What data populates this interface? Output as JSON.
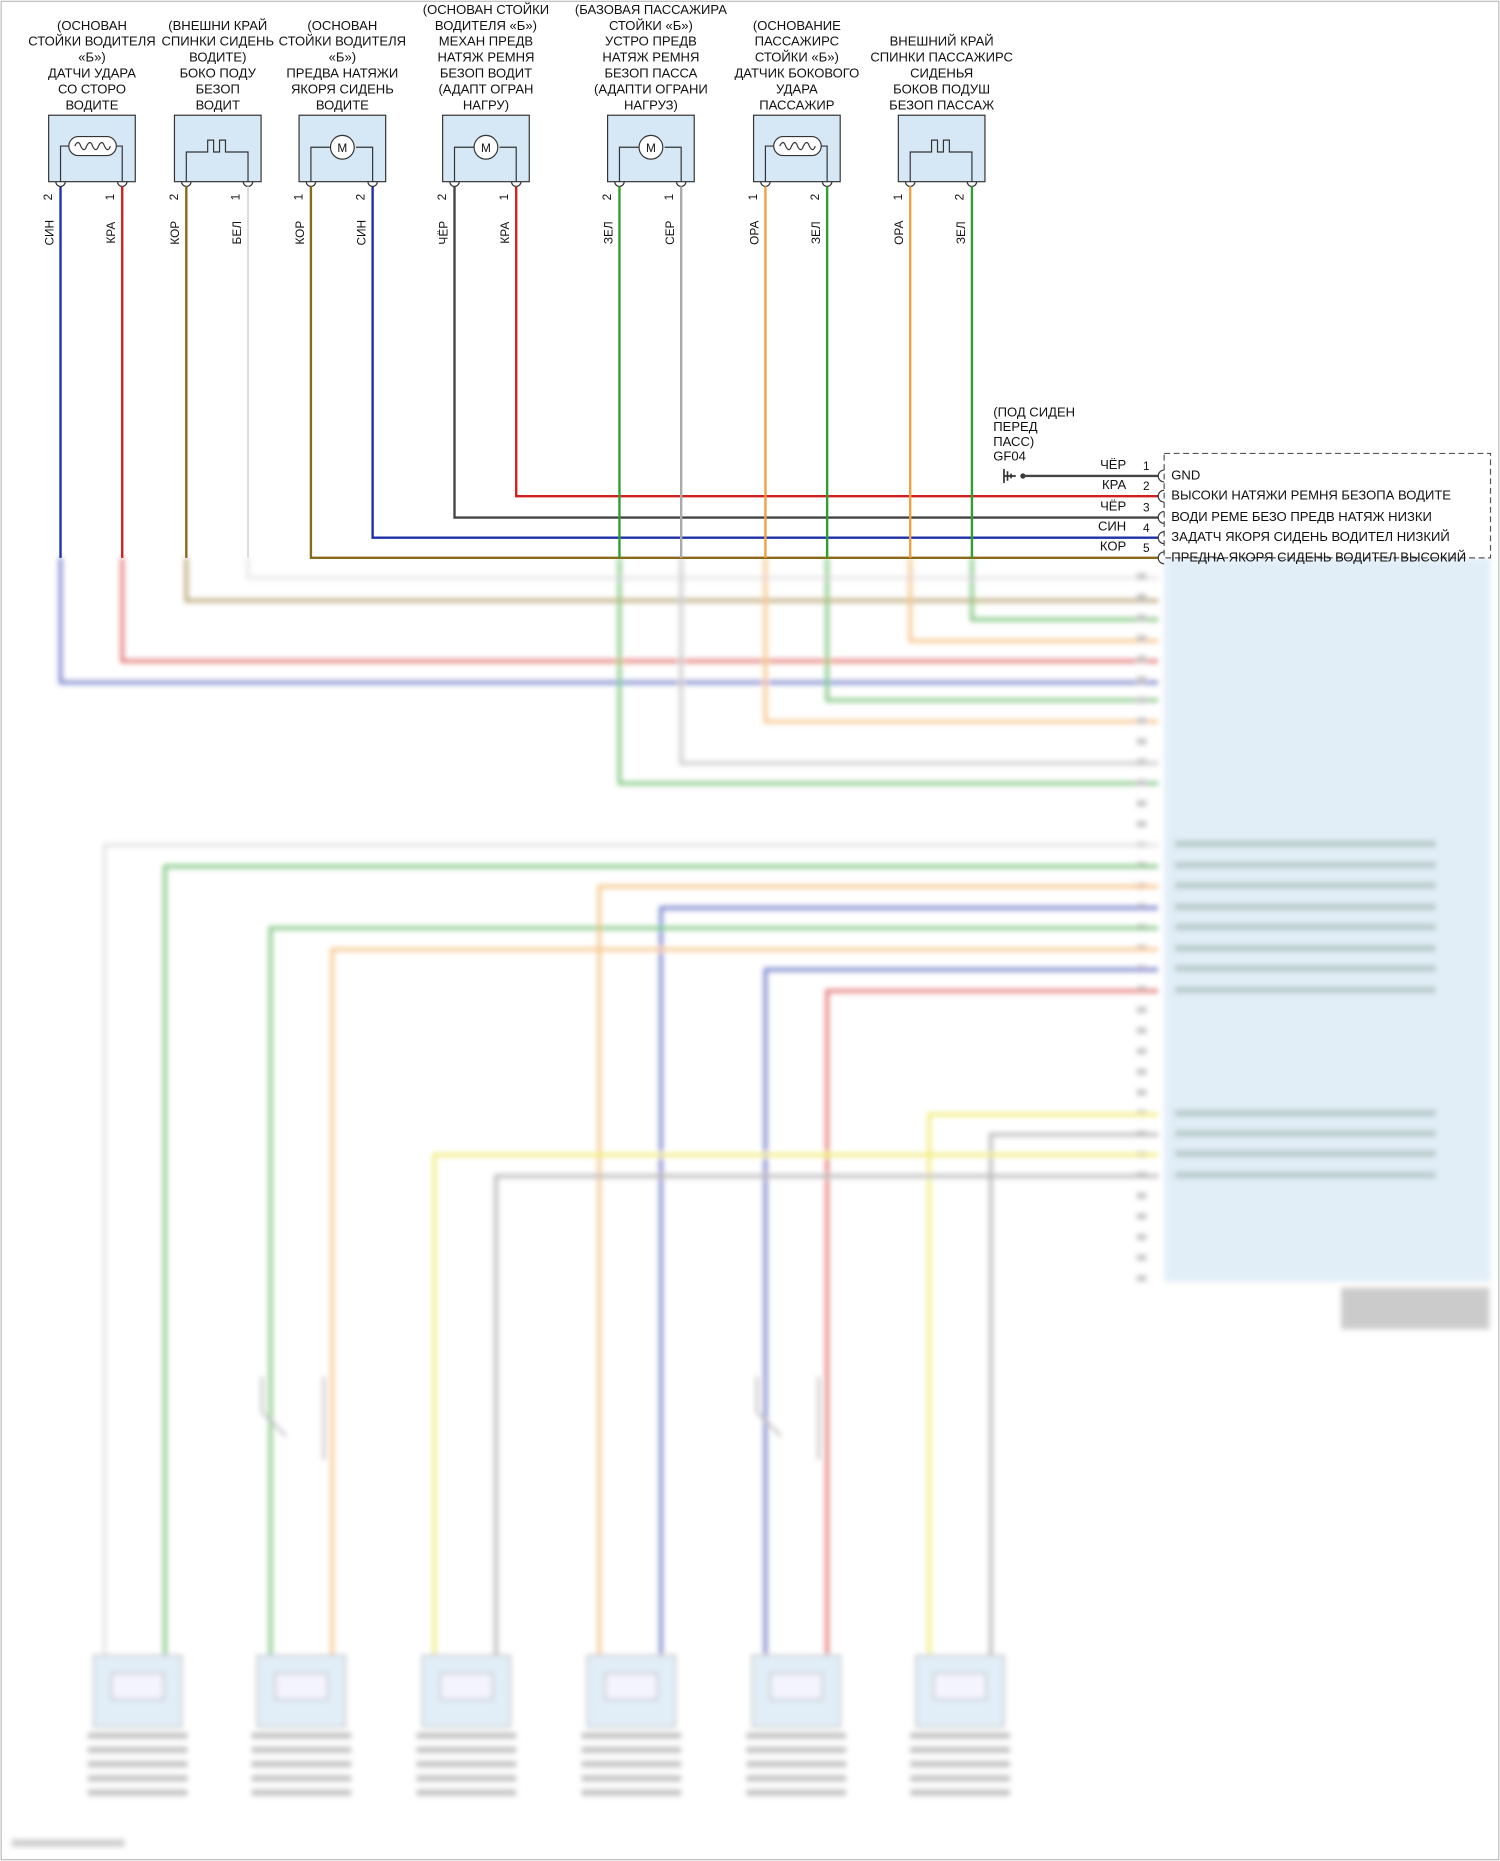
{
  "components": [
    {
      "label": [
        "(ОСНОВАН",
        "СТОЙКИ ВОДИТЕЛЯ",
        "«Б»)",
        "ДАТЧИ УДАРА",
        "СО СТОРО",
        "ВОДИТЕ"
      ],
      "pins": [
        {
          "number": "2",
          "wire": "СИН",
          "color": "#1f2fa8"
        },
        {
          "number": "1",
          "wire": "КРА",
          "color": "#d11f1f"
        }
      ]
    },
    {
      "label": [
        "(ВНЕШНИ КРАЙ",
        "СПИНКИ СИДЕНЬ",
        "ВОДИТЕ)",
        "БОКО ПОДУ",
        "БЕЗОП",
        "ВОДИТ"
      ],
      "pins": [
        {
          "number": "2",
          "wire": "КОР",
          "color": "#8a6a1a"
        },
        {
          "number": "1",
          "wire": "БЕЛ",
          "color": "#d8d8d8"
        }
      ]
    },
    {
      "label": [
        "(ОСНОВАН",
        "СТОЙКИ ВОДИТЕЛЯ",
        "«Б»)",
        "ПРЕДВА НАТЯЖИ",
        "ЯКОРЯ СИДЕНЬ",
        "ВОДИТЕ"
      ],
      "pins": [
        {
          "number": "1",
          "wire": "КОР",
          "color": "#8a6a1a"
        },
        {
          "number": "2",
          "wire": "СИН",
          "color": "#1f2fa8"
        }
      ]
    },
    {
      "label": [
        "(ОСНОВАН СТОЙКИ",
        "ВОДИТЕЛЯ «Б»)",
        "МЕХАН ПРЕДВ",
        "НАТЯЖ РЕМНЯ",
        "БЕЗОП ВОДИТ",
        "(АДАПТ ОГРАН",
        "НАГРУ)"
      ],
      "pins": [
        {
          "number": "2",
          "wire": "ЧЁР",
          "color": "#444444"
        },
        {
          "number": "1",
          "wire": "КРА",
          "color": "#d11f1f"
        }
      ]
    },
    {
      "label": [
        "(БАЗОВАЯ ПАССАЖИРА",
        "СТОЙКИ «Б»)",
        "УСТРО ПРЕДВ",
        "НАТЯЖ РЕМНЯ",
        "БЕЗОП ПАССА",
        "(АДАПТИ ОГРАНИ",
        "НАГРУЗ)"
      ],
      "pins": [
        {
          "number": "2",
          "wire": "ЗЕЛ",
          "color": "#2ea02e"
        },
        {
          "number": "1",
          "wire": "СЕР",
          "color": "#aaaaaa"
        }
      ]
    },
    {
      "label": [
        "(ОСНОВАНИЕ",
        "ПАССАЖИРС",
        "СТОЙКИ «Б»)",
        "ДАТЧИК БОКОВОГО",
        "УДАРА",
        "ПАССАЖИР"
      ],
      "pins": [
        {
          "number": "1",
          "wire": "ОРА",
          "color": "#f0a040"
        },
        {
          "number": "2",
          "wire": "ЗЕЛ",
          "color": "#2ea02e"
        }
      ]
    },
    {
      "label": [
        "ВНЕШНИЙ КРАЙ",
        "СПИНКИ ПАССАЖИРС",
        "СИДЕНЬЯ",
        "БОКОВ ПОДУШ",
        "БЕЗОП ПАССАЖ"
      ],
      "pins": [
        {
          "number": "1",
          "wire": "ОРА",
          "color": "#f0a040"
        },
        {
          "number": "2",
          "wire": "ЗЕЛ",
          "color": "#2ea02e"
        }
      ]
    }
  ],
  "motor_symbol": "M",
  "ground": {
    "label": [
      "(ПОД СИДЕН",
      "ПЕРЕД",
      "ПАСС)",
      "GF04"
    ]
  },
  "module": {
    "pins": [
      {
        "number": "1",
        "wire": "ЧЁР",
        "signal": "GND"
      },
      {
        "number": "2",
        "wire": "КРА",
        "signal": "ВЫСОКИ НАТЯЖИ РЕМНЯ БЕЗОПА ВОДИТЕ"
      },
      {
        "number": "3",
        "wire": "ЧЁР",
        "signal": "ВОДИ РЕМЕ БЕЗО ПРЕДВ НАТЯЖ НИЗКИ"
      },
      {
        "number": "4",
        "wire": "СИН",
        "signal": "ЗАДАТЧ ЯКОРЯ СИДЕНЬ ВОДИТЕЛ НИЗКИЙ"
      },
      {
        "number": "5",
        "wire": "КОР",
        "signal": "ПРЕДНА ЯКОРЯ СИДЕНЬ ВОДИТЕЛ ВЫСОКИЙ"
      }
    ]
  }
}
